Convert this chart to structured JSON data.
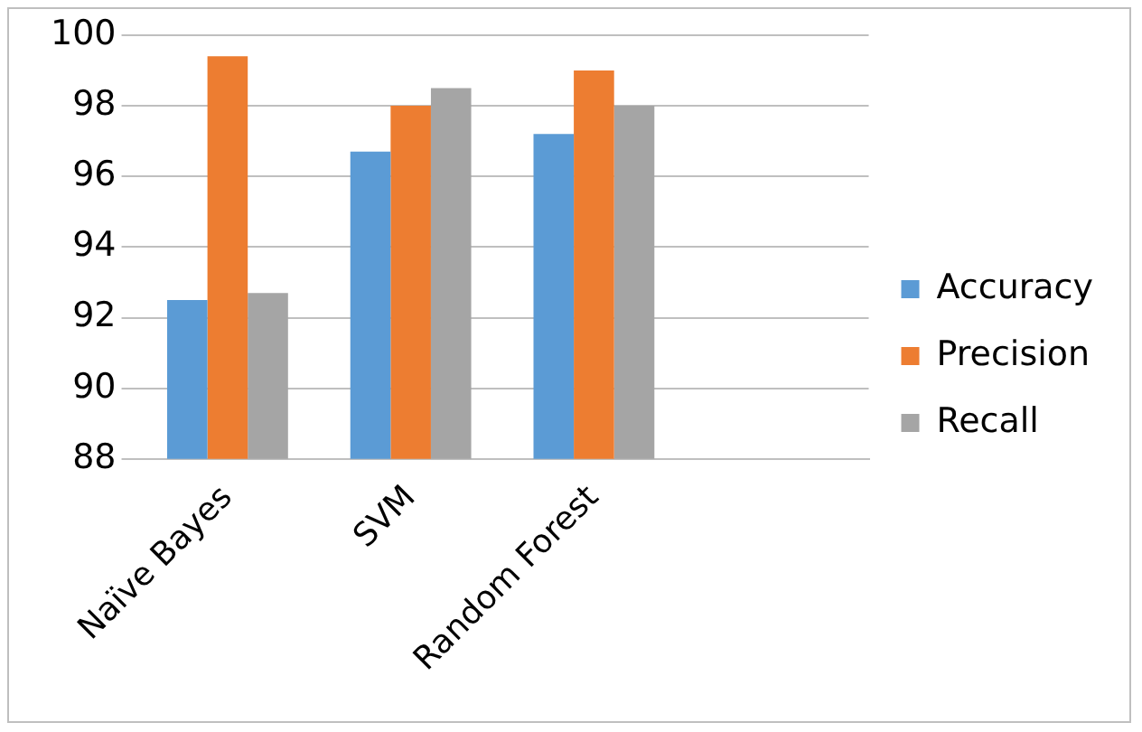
{
  "chart_data": {
    "type": "bar",
    "categories": [
      "Naïve Bayes",
      "SVM",
      "Random Forest",
      null
    ],
    "series": [
      {
        "name": "Accuracy",
        "color": "#5b9bd5",
        "values": [
          92.5,
          96.7,
          97.2,
          null
        ]
      },
      {
        "name": "Precision",
        "color": "#ed7d31",
        "values": [
          99.4,
          98.0,
          99.0,
          null
        ]
      },
      {
        "name": "Recall",
        "color": "#a5a5a5",
        "values": [
          92.7,
          98.5,
          98.0,
          null
        ]
      }
    ],
    "ylim": [
      88,
      100
    ],
    "yticks": [
      88,
      90,
      92,
      94,
      96,
      98,
      100
    ],
    "grid": "y",
    "legend": "right"
  }
}
